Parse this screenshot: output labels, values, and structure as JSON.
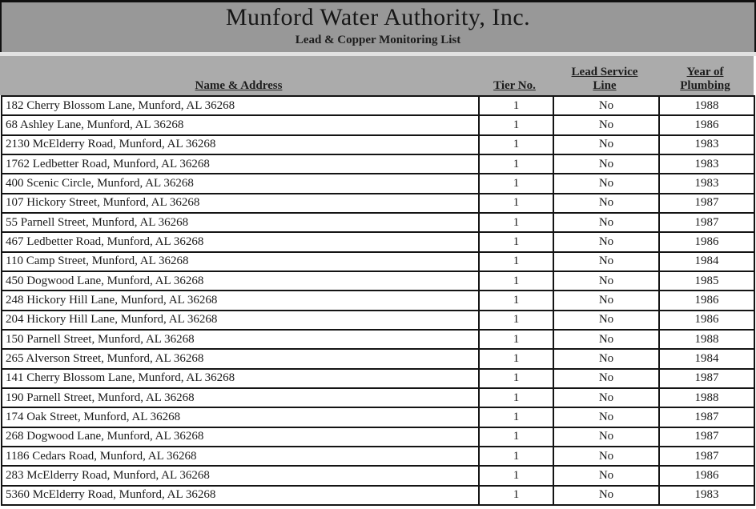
{
  "header": {
    "title": "Munford Water Authority, Inc.",
    "subtitle": "Lead & Copper Monitoring List"
  },
  "colors": {
    "title_band_bg": "#989898",
    "header_band_bg": "#ababab",
    "separator": "#e2e2e2",
    "border": "#141414",
    "text": "#1a1a1a"
  },
  "table": {
    "columns": [
      {
        "id": "address",
        "label": "Name & Address"
      },
      {
        "id": "tier",
        "label": "Tier No."
      },
      {
        "id": "lead_service_line",
        "label": "Lead Service\nLine"
      },
      {
        "id": "year",
        "label": "Year of\nPlumbing"
      }
    ],
    "rows": [
      {
        "address": "182 Cherry Blossom Lane, Munford, AL 36268",
        "tier": "1",
        "lead_service_line": "No",
        "year": "1988"
      },
      {
        "address": "68 Ashley Lane, Munford, AL 36268",
        "tier": "1",
        "lead_service_line": "No",
        "year": "1986"
      },
      {
        "address": "2130 McElderry Road, Munford, AL 36268",
        "tier": "1",
        "lead_service_line": "No",
        "year": "1983"
      },
      {
        "address": "1762 Ledbetter Road, Munford, AL 36268",
        "tier": "1",
        "lead_service_line": "No",
        "year": "1983"
      },
      {
        "address": "400 Scenic Circle, Munford, AL 36268",
        "tier": "1",
        "lead_service_line": "No",
        "year": "1983"
      },
      {
        "address": "107 Hickory Street, Munford, AL 36268",
        "tier": "1",
        "lead_service_line": "No",
        "year": "1987"
      },
      {
        "address": "55 Parnell Street, Munford, AL 36268",
        "tier": "1",
        "lead_service_line": "No",
        "year": "1987"
      },
      {
        "address": "467 Ledbetter Road, Munford, AL 36268",
        "tier": "1",
        "lead_service_line": "No",
        "year": "1986"
      },
      {
        "address": "110 Camp Street, Munford, AL 36268",
        "tier": "1",
        "lead_service_line": "No",
        "year": "1984"
      },
      {
        "address": "450 Dogwood Lane, Munford, AL 36268",
        "tier": "1",
        "lead_service_line": "No",
        "year": "1985"
      },
      {
        "address": "248 Hickory Hill Lane, Munford, AL 36268",
        "tier": "1",
        "lead_service_line": "No",
        "year": "1986"
      },
      {
        "address": "204 Hickory Hill Lane, Munford, AL 36268",
        "tier": "1",
        "lead_service_line": "No",
        "year": "1986"
      },
      {
        "address": "150 Parnell Street, Munford, AL 36268",
        "tier": "1",
        "lead_service_line": "No",
        "year": "1988"
      },
      {
        "address": "265 Alverson Street, Munford, AL 36268",
        "tier": "1",
        "lead_service_line": "No",
        "year": "1984"
      },
      {
        "address": "141 Cherry Blossom Lane, Munford, AL 36268",
        "tier": "1",
        "lead_service_line": "No",
        "year": "1987"
      },
      {
        "address": "190 Parnell Street, Munford, AL 36268",
        "tier": "1",
        "lead_service_line": "No",
        "year": "1988"
      },
      {
        "address": "174 Oak Street, Munford, AL 36268",
        "tier": "1",
        "lead_service_line": "No",
        "year": "1987"
      },
      {
        "address": "268 Dogwood Lane, Munford, AL 36268",
        "tier": "1",
        "lead_service_line": "No",
        "year": "1987"
      },
      {
        "address": "1186 Cedars Road, Munford, AL 36268",
        "tier": "1",
        "lead_service_line": "No",
        "year": "1987"
      },
      {
        "address": "283 McElderry Road, Munford, AL 36268",
        "tier": "1",
        "lead_service_line": "No",
        "year": "1986"
      },
      {
        "address": "5360 McElderry Road, Munford, AL 36268",
        "tier": "1",
        "lead_service_line": "No",
        "year": "1983"
      }
    ]
  }
}
